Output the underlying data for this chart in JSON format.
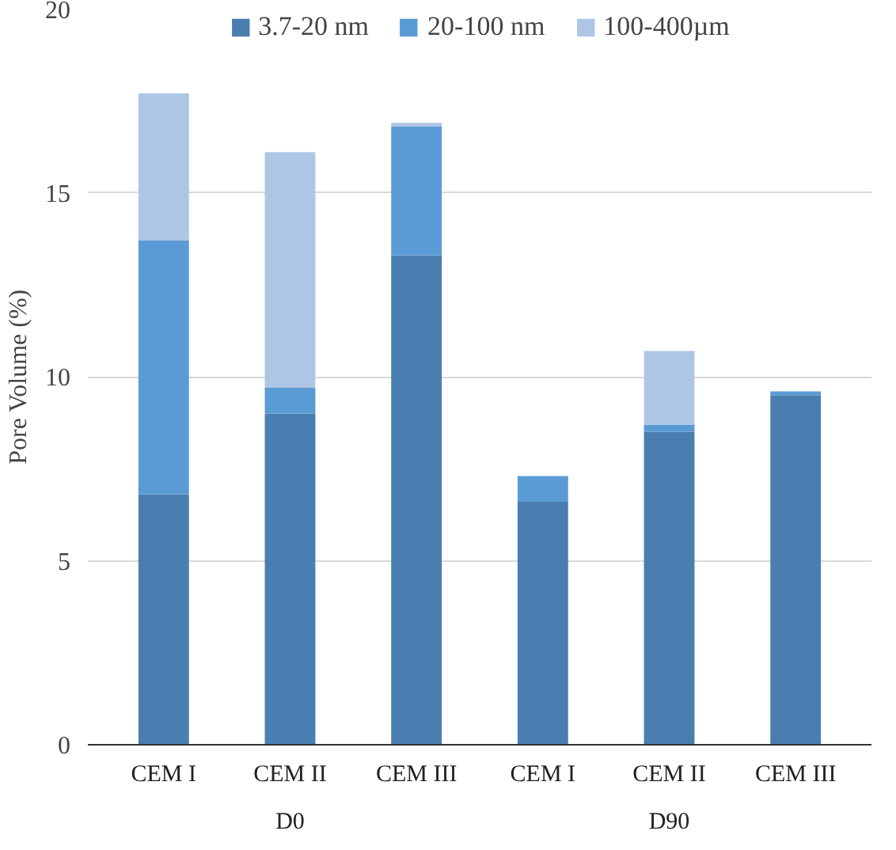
{
  "chart_data": {
    "type": "bar",
    "stacked": true,
    "ylabel": "Pore Volume (%)",
    "categories": [
      "CEM I",
      "CEM II",
      "CEM III",
      "CEM I",
      "CEM II",
      "CEM III"
    ],
    "series": [
      {
        "name": "3.7-20 nm",
        "color": "#4a7eb0",
        "values": [
          6.8,
          9.0,
          13.3,
          6.6,
          8.5,
          9.5
        ]
      },
      {
        "name": "20-100 nm",
        "color": "#5b9bd5",
        "values": [
          6.9,
          0.7,
          3.5,
          0.7,
          0.2,
          0.1
        ]
      },
      {
        "name": "100-400µm",
        "color": "#adc6e5",
        "values": [
          4.0,
          6.4,
          0.1,
          0,
          2.0,
          0
        ]
      }
    ],
    "ylim": [
      0,
      20
    ],
    "yticks": [
      0,
      5,
      10,
      15,
      20
    ],
    "grid": "y",
    "legend": "top",
    "annotations": [
      "D0",
      "D90"
    ]
  }
}
